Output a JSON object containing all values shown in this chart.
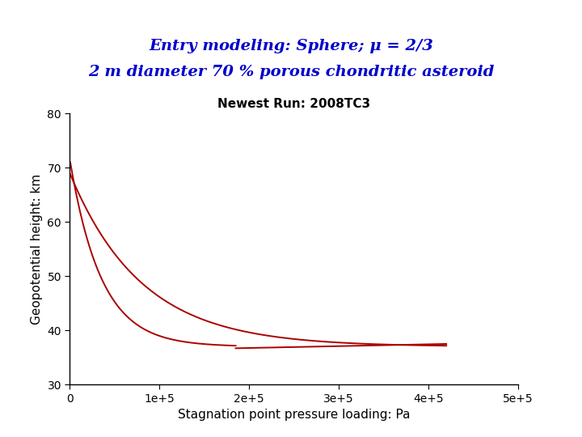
{
  "title_line1": "Entry modeling: Sphere; μ = 2/3",
  "title_line2": "2 m diameter 70 % porous chondritic asteroid",
  "title_color": "#0000CC",
  "plot_title": "Newest Run: 2008TC3",
  "xlabel": "Stagnation point pressure loading: Pa",
  "ylabel": "Geopotential height: km",
  "xlim": [
    0,
    500000
  ],
  "ylim": [
    30,
    80
  ],
  "yticks": [
    30,
    40,
    50,
    60,
    70,
    80
  ],
  "xticks": [
    0,
    100000,
    200000,
    300000,
    400000,
    500000
  ],
  "xticklabels": [
    "0",
    "1e+5",
    "2e+5",
    "3e+5",
    "4e+5",
    "5e+5"
  ],
  "line_color": "#AA0000",
  "background_color": "#ffffff"
}
